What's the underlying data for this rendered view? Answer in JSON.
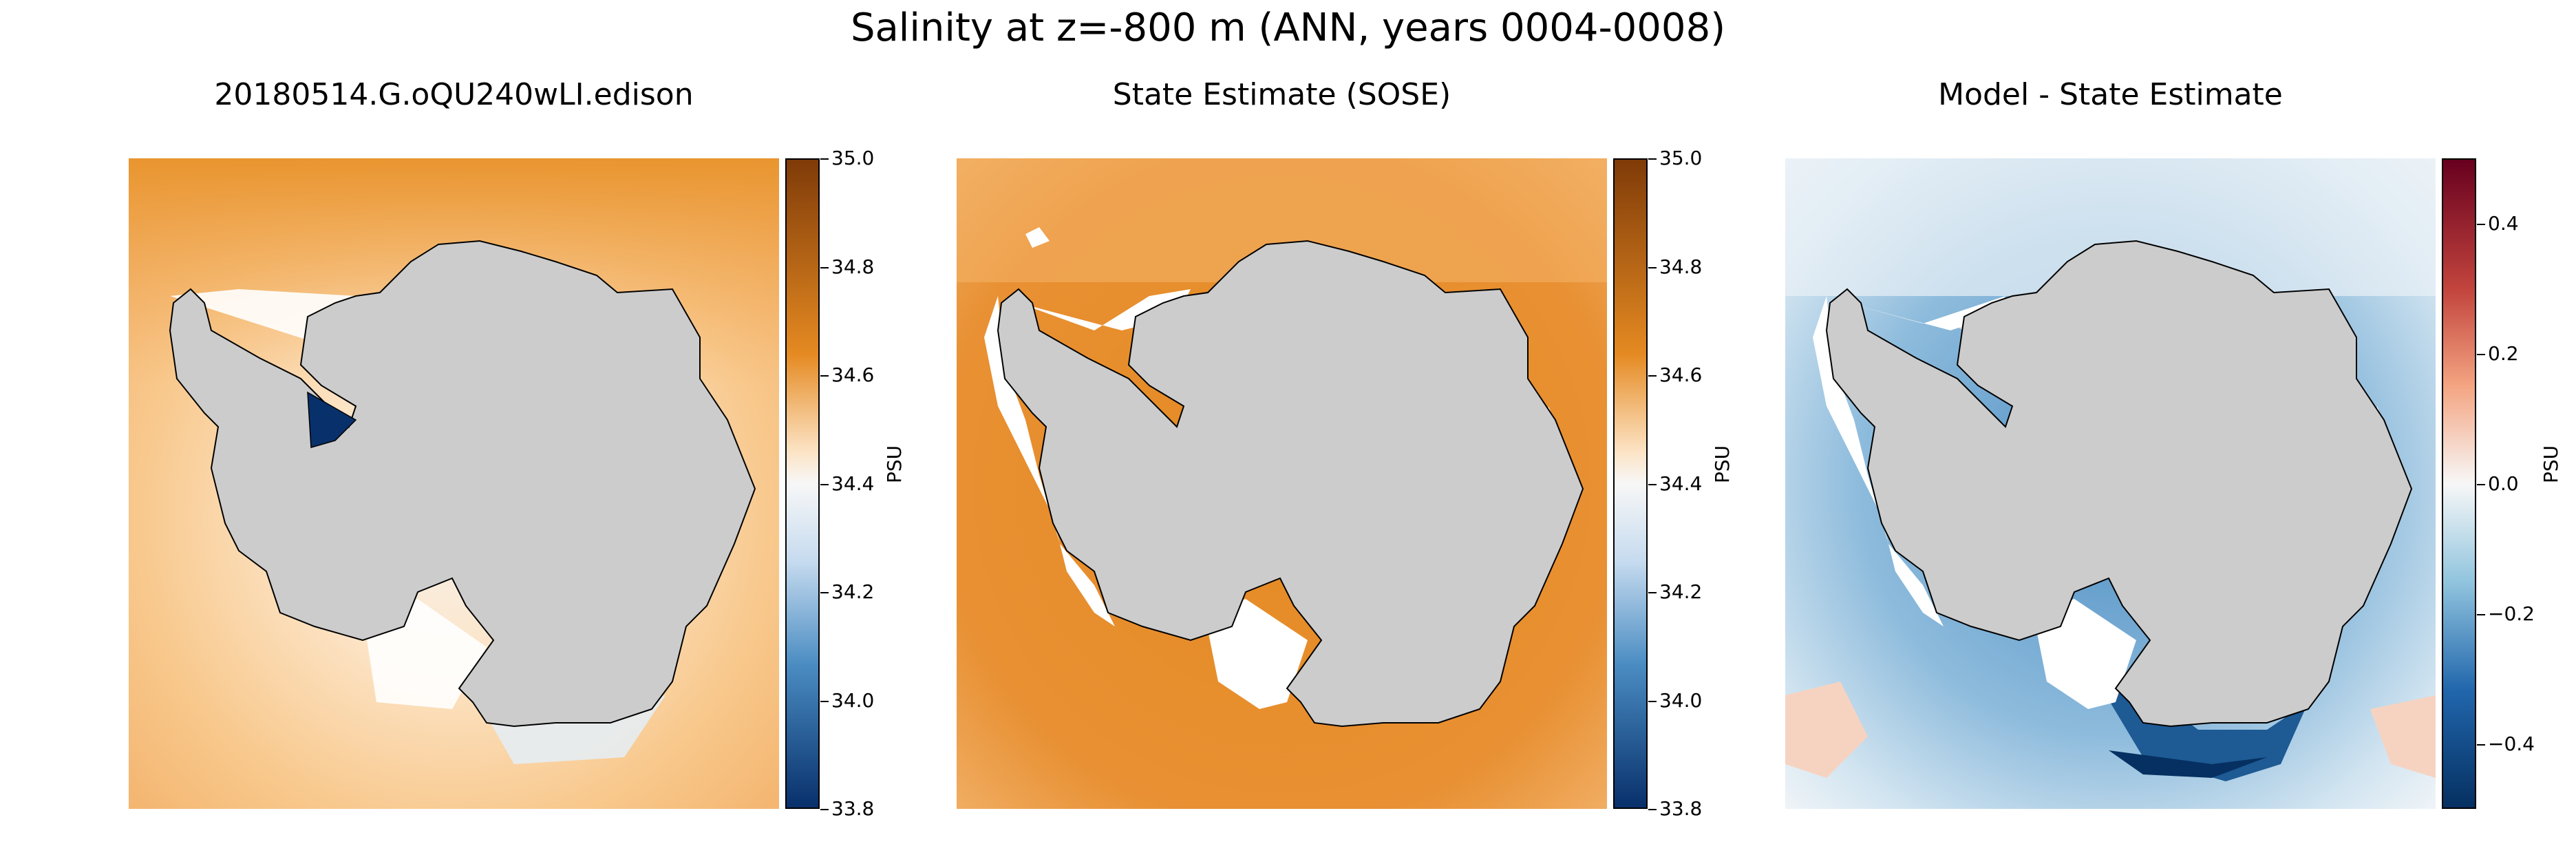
{
  "figure": {
    "title": "Salinity at z=-800 m (ANN, years 0004-0008)"
  },
  "panels": [
    {
      "title": "20180514.G.oQU240wLI.edison",
      "colormap": "orange-blue",
      "colorbar": {
        "label": "PSU",
        "ticks": [
          "35.0",
          "34.8",
          "34.6",
          "34.4",
          "34.2",
          "34.0",
          "33.8"
        ],
        "range": [
          33.8,
          35.0
        ]
      }
    },
    {
      "title": "State Estimate (SOSE)",
      "colormap": "orange-blue",
      "colorbar": {
        "label": "PSU",
        "ticks": [
          "35.0",
          "34.8",
          "34.6",
          "34.4",
          "34.2",
          "34.0",
          "33.8"
        ],
        "range": [
          33.8,
          35.0
        ]
      }
    },
    {
      "title": "Model - State Estimate",
      "colormap": "red-blue",
      "colorbar": {
        "label": "PSU",
        "ticks": [
          "0.4",
          "0.2",
          "0.0",
          "−0.2",
          "−0.4"
        ],
        "range": [
          -0.5,
          0.5
        ]
      }
    }
  ],
  "colors": {
    "land": "#cccccc",
    "coast": "#000000",
    "salty": "#e58a22",
    "fresh": "#08306b",
    "positive": "#67001f",
    "negative": "#053061"
  }
}
